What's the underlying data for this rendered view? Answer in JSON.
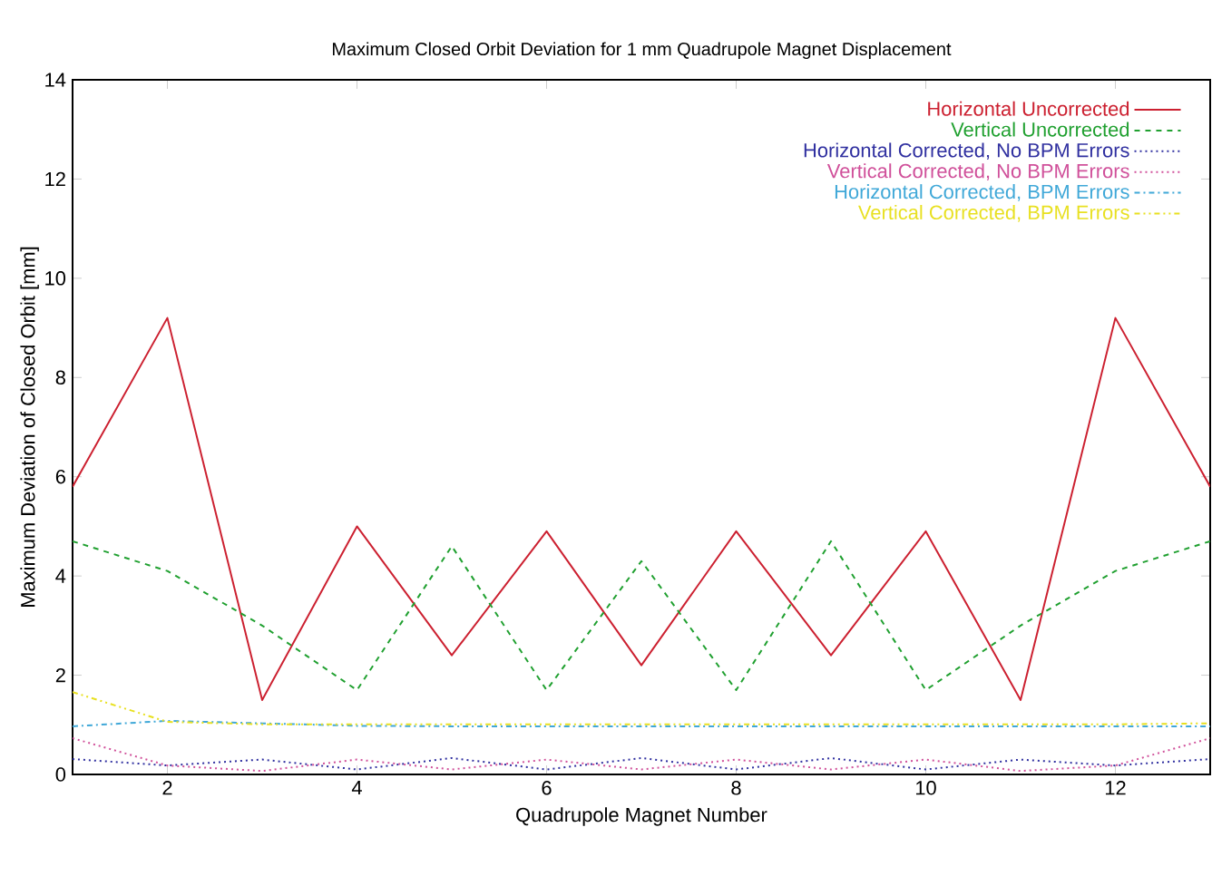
{
  "chart_data": {
    "type": "line",
    "title": "Maximum Closed Orbit Deviation for 1 mm Quadrupole Magnet Displacement",
    "xlabel": "Quadrupole Magnet Number",
    "ylabel": "Maximum Deviation of Closed Orbit [mm]",
    "x": [
      1,
      2,
      3,
      4,
      5,
      6,
      7,
      8,
      9,
      10,
      11,
      12,
      13
    ],
    "xlim": [
      1,
      13
    ],
    "xticks": [
      2,
      4,
      6,
      8,
      10,
      12
    ],
    "ylim": [
      0,
      14
    ],
    "yticks": [
      0,
      2,
      4,
      6,
      8,
      10,
      12,
      14
    ],
    "legend": "top right",
    "marker": "none",
    "series": [
      {
        "name": "Horizontal Uncorrected",
        "color": "#cc2030",
        "line_style": "solid",
        "values": [
          5.8,
          9.2,
          1.5,
          5.0,
          2.4,
          4.9,
          2.2,
          4.9,
          2.4,
          4.9,
          1.5,
          9.2,
          5.8
        ]
      },
      {
        "name": "Vertical Uncorrected",
        "color": "#20a030",
        "line_style": "dashed",
        "values": [
          4.7,
          4.1,
          3.0,
          1.7,
          4.6,
          1.7,
          4.3,
          1.7,
          4.7,
          1.7,
          3.0,
          4.1,
          4.7
        ]
      },
      {
        "name": "Horizontal Corrected, No BPM Errors",
        "color": "#3030a0",
        "line_style": "dotted",
        "values": [
          0.31,
          0.18,
          0.3,
          0.1,
          0.33,
          0.1,
          0.33,
          0.1,
          0.33,
          0.1,
          0.3,
          0.18,
          0.31
        ]
      },
      {
        "name": "Vertical Corrected, No BPM Errors",
        "color": "#d0509a",
        "line_style": "dotted",
        "values": [
          0.73,
          0.18,
          0.07,
          0.3,
          0.1,
          0.3,
          0.1,
          0.3,
          0.1,
          0.3,
          0.07,
          0.18,
          0.73
        ]
      },
      {
        "name": "Horizontal Corrected, BPM Errors",
        "color": "#40a8d8",
        "line_style": "dashdot",
        "values": [
          0.97,
          1.08,
          1.03,
          0.98,
          0.97,
          0.97,
          0.97,
          0.97,
          0.97,
          0.97,
          0.97,
          0.97,
          0.97
        ]
      },
      {
        "name": "Vertical Corrected, BPM Errors",
        "color": "#e8e020",
        "line_style": "dashdotdot",
        "values": [
          1.66,
          1.06,
          1.01,
          1.01,
          1.01,
          1.01,
          1.01,
          1.01,
          1.01,
          1.01,
          1.01,
          1.01,
          1.03
        ]
      }
    ]
  }
}
